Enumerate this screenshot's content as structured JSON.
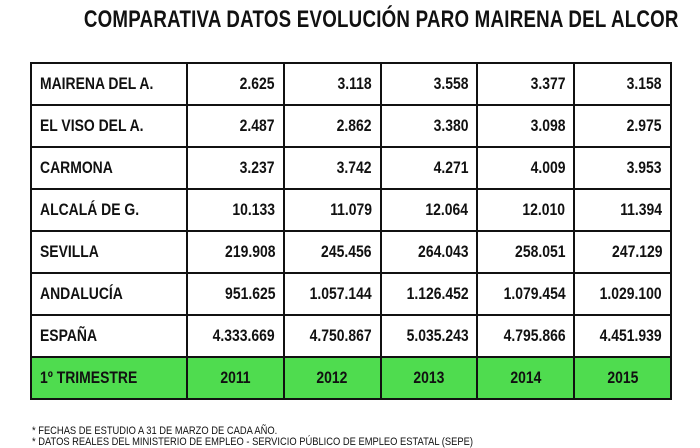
{
  "title": "COMPARATIVA DATOS EVOLUCIÓN PARO MAIRENA DEL ALCOR",
  "table": {
    "rows": [
      {
        "label": "MAIRENA DEL A.",
        "values": [
          "2.625",
          "3.118",
          "3.558",
          "3.377",
          "3.158"
        ]
      },
      {
        "label": "EL VISO DEL A.",
        "values": [
          "2.487",
          "2.862",
          "3.380",
          "3.098",
          "2.975"
        ]
      },
      {
        "label": "CARMONA",
        "values": [
          "3.237",
          "3.742",
          "4.271",
          "4.009",
          "3.953"
        ]
      },
      {
        "label": "ALCALÁ DE G.",
        "values": [
          "10.133",
          "11.079",
          "12.064",
          "12.010",
          "11.394"
        ]
      },
      {
        "label": "SEVILLA",
        "values": [
          "219.908",
          "245.456",
          "264.043",
          "258.051",
          "247.129"
        ]
      },
      {
        "label": "ANDALUCÍA",
        "values": [
          "951.625",
          "1.057.144",
          "1.126.452",
          "1.079.454",
          "1.029.100"
        ]
      },
      {
        "label": "ESPAÑA",
        "values": [
          "4.333.669",
          "4.750.867",
          "5.035.243",
          "4.795.866",
          "4.451.939"
        ]
      }
    ],
    "footer": {
      "label": "1º TRIMESTRE",
      "years": [
        "2011",
        "2012",
        "2013",
        "2014",
        "2015"
      ]
    },
    "footer_color": "#4fdc4f"
  },
  "notes": [
    "* FECHAS DE ESTUDIO A 31 DE MARZO DE CADA AÑO.",
    "* DATOS REALES DEL MINISTERIO DE EMPLEO - SERVICIO PÚBLICO DE EMPLEO ESTATAL (SEPE)"
  ]
}
